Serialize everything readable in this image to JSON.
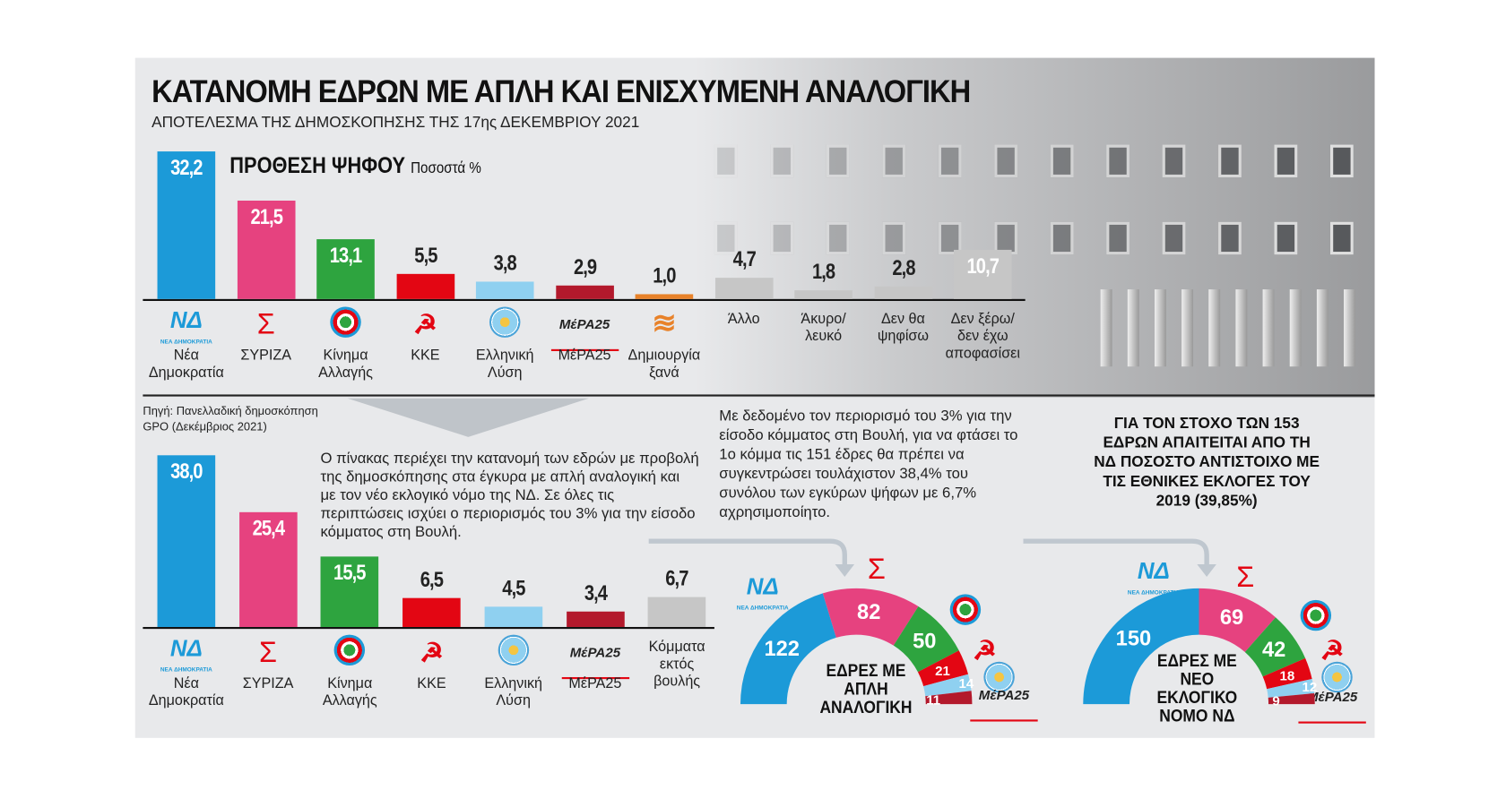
{
  "header": {
    "title": "ΚΑΤΑΝΟΜΗ ΕΔΡΩΝ ΜΕ ΑΠΛΗ ΚΑΙ ΕΝΙΣΧΥΜΕΝΗ ΑΝΑΛΟΓΙΚΗ",
    "subtitle": "ΑΠΟΤΕΛΕΣΜΑ ΤΗΣ ΔΗΜΟΣΚΟΠΗΣΗΣ ΤΗΣ 17ης ΔΕΚΕΜΒΡΙΟΥ 2021"
  },
  "logos": {
    "nd": "ΝΔ",
    "nd_sub": "ΝΕΑ ΔΗΜΟΚΡΑΤΙΑ",
    "syriza": "Σ",
    "kke": "☭",
    "mera": "ΜέΡΑ25",
    "dimiourgia": "≋"
  },
  "source": {
    "line1": "Πηγή: Πανελλαδική δημοσκόπηση",
    "line2": "GPO (Δεκέμβριος 2021)"
  },
  "texts": {
    "description": "Ο πίνακας περιέχει την κατανομή των εδρών με προβολή της δημοσκόπησης στα έγκυρα με απλή αναλογική και με τον νέο εκλογικό νόμο της ΝΔ. Σε όλες τις περιπτώσεις ισχύει ο περιορισμός του 3% για την είσοδο κόμματος στη Βουλή.",
    "note": "Με δεδομένο τον περιορισμό του 3% για την είσοδο κόμματος στη Βουλή, για να φτάσει το 1ο κόμμα τις 151 έδρες θα πρέπει να συγκεντρώσει τουλάχιστον 38,4% του συνόλου των εγκύρων ψήφων με 6,7% αχρησιμοποίητο.",
    "target": "ΓΙΑ ΤΟΝ ΣΤΟΧΟ ΤΩΝ 153 ΕΔΡΩΝ ΑΠΑΙΤΕΙΤΑΙ ΑΠΟ ΤΗ ΝΔ ΠΟΣΟΣΤΟ ΑΝΤΙΣΤΟΙΧΟ ΜΕ ΤΙΣ ΕΘΝΙΚΕΣ ΕΚΛΟΓΕΣ ΤΟΥ 2019 (39,85%)"
  },
  "chart_data": [
    {
      "type": "bar",
      "title": "ΠΡΟΘΕΣΗ ΨΗΦΟΥ",
      "unit": "Ποσοστά %",
      "categories": [
        "Νέα\nΔημοκρατία",
        "ΣΥΡΙΖΑ",
        "Κίνημα\nΑλλαγής",
        "ΚΚΕ",
        "Ελληνική\nΛύση",
        "ΜέΡΑ25",
        "Δημιουργία\nξανά",
        "Άλλο",
        "Άκυρο/\nλευκό",
        "Δεν θα\nψηφίσω",
        "Δεν ξέρω/\nδεν έχω\nαποφασίσει"
      ],
      "values": [
        "32,2",
        "21,5",
        "13,1",
        "5,5",
        "3,8",
        "2,9",
        "1,0",
        "4,7",
        "1,8",
        "2,8",
        "10,7"
      ],
      "logos": [
        "nd",
        "syriza",
        "kinal",
        "kke",
        "el",
        "mera",
        "dimiourgia",
        "",
        "",
        "",
        ""
      ],
      "colors": [
        "#1c9ad8",
        "#e6427f",
        "#2ea43f",
        "#e30613",
        "#8fd0f0",
        "#b3192c",
        "#e8822a",
        "#c6c6c6",
        "#c6c6c6",
        "#c6c6c6",
        "#c6c6c6"
      ]
    },
    {
      "type": "bar",
      "title": "",
      "categories": [
        "Νέα\nΔημοκρατία",
        "ΣΥΡΙΖΑ",
        "Κίνημα\nΑλλαγής",
        "ΚΚΕ",
        "Ελληνική\nΛύση",
        "ΜέΡΑ25",
        "Κόμματα\nεκτός\nβουλής"
      ],
      "values": [
        "38,0",
        "25,4",
        "15,5",
        "6,5",
        "4,5",
        "3,4",
        "6,7"
      ],
      "logos": [
        "nd",
        "syriza",
        "kinal",
        "kke",
        "el",
        "mera",
        ""
      ],
      "colors": [
        "#1c9ad8",
        "#e6427f",
        "#2ea43f",
        "#e30613",
        "#8fd0f0",
        "#b3192c",
        "#c6c6c6"
      ]
    },
    {
      "type": "pie",
      "title": "ΕΔΡΕΣ ΜΕ ΑΠΛΗ ΑΝΑΛΟΓΙΚΗ",
      "total": 300,
      "categories": [
        "Νέα Δημοκρατία",
        "ΣΥΡΙΖΑ",
        "Κίνημα Αλλαγής",
        "ΚΚΕ",
        "Ελληνική Λύση",
        "ΜέΡΑ25"
      ],
      "values": [
        122,
        82,
        50,
        21,
        14,
        11
      ],
      "colors": [
        "#1c9ad8",
        "#e6427f",
        "#2ea43f",
        "#e30613",
        "#8fd0f0",
        "#b3192c"
      ]
    },
    {
      "type": "pie",
      "title": "ΕΔΡΕΣ ΜΕ ΝΕΟ ΕΚΛΟΓΙΚΟ ΝΟΜΟ ΝΔ",
      "total": 300,
      "categories": [
        "Νέα Δημοκρατία",
        "ΣΥΡΙΖΑ",
        "Κίνημα Αλλαγής",
        "ΚΚΕ",
        "Ελληνική Λύση",
        "ΜέΡΑ25"
      ],
      "values": [
        150,
        69,
        42,
        18,
        12,
        9
      ],
      "colors": [
        "#1c9ad8",
        "#e6427f",
        "#2ea43f",
        "#e30613",
        "#8fd0f0",
        "#b3192c"
      ]
    }
  ]
}
